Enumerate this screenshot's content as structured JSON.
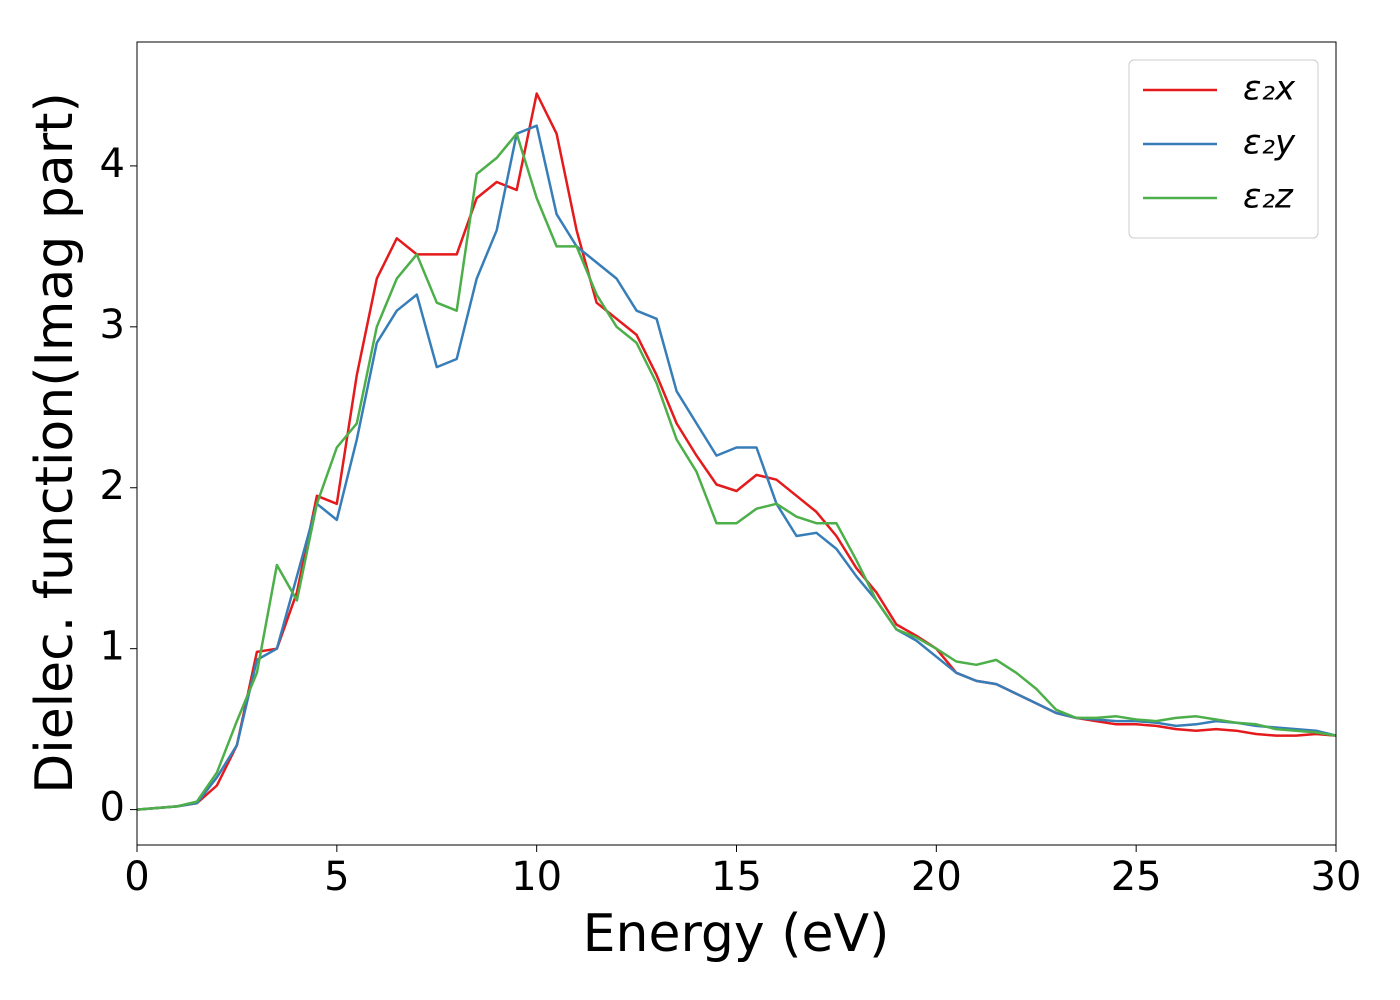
{
  "chart_data": {
    "type": "line",
    "xlabel": "Energy (eV)",
    "ylabel": "Dielec. function(Imag part)",
    "x": [
      0,
      0.5,
      1,
      1.5,
      2,
      2.5,
      3,
      3.5,
      4,
      4.5,
      5,
      5.5,
      6,
      6.5,
      7,
      7.5,
      8,
      8.5,
      9,
      9.5,
      10,
      10.5,
      11,
      11.5,
      12,
      12.5,
      13,
      13.5,
      14,
      14.5,
      15,
      15.5,
      16,
      16.5,
      17,
      17.5,
      18,
      18.5,
      19,
      19.5,
      20,
      20.5,
      21,
      21.5,
      22,
      22.5,
      23,
      23.5,
      24,
      24.5,
      25,
      25.5,
      26,
      26.5,
      27,
      27.5,
      28,
      28.5,
      29,
      29.5,
      30
    ],
    "series": [
      {
        "name": "ε₂x",
        "color": "#e41a1c",
        "values": [
          0,
          0.01,
          0.02,
          0.04,
          0.15,
          0.4,
          0.98,
          1.0,
          1.35,
          1.95,
          1.9,
          2.7,
          3.3,
          3.55,
          3.45,
          3.45,
          3.45,
          3.8,
          3.9,
          3.85,
          4.45,
          4.2,
          3.6,
          3.15,
          3.05,
          2.95,
          2.7,
          2.4,
          2.2,
          2.02,
          1.98,
          2.08,
          2.05,
          1.95,
          1.85,
          1.7,
          1.5,
          1.35,
          1.15,
          1.08,
          1.0,
          0.85,
          0.8,
          0.78,
          0.72,
          0.66,
          0.6,
          0.57,
          0.55,
          0.53,
          0.53,
          0.52,
          0.5,
          0.49,
          0.5,
          0.49,
          0.47,
          0.46,
          0.46,
          0.47,
          0.46
        ]
      },
      {
        "name": "ε₂y",
        "color": "#377eb8",
        "values": [
          0,
          0.01,
          0.02,
          0.04,
          0.2,
          0.4,
          0.93,
          1.0,
          1.45,
          1.9,
          1.8,
          2.3,
          2.9,
          3.1,
          3.2,
          2.75,
          2.8,
          3.3,
          3.6,
          4.2,
          4.25,
          3.7,
          3.5,
          3.4,
          3.3,
          3.1,
          3.05,
          2.6,
          2.4,
          2.2,
          2.25,
          2.25,
          1.9,
          1.7,
          1.72,
          1.62,
          1.45,
          1.3,
          1.12,
          1.05,
          0.95,
          0.85,
          0.8,
          0.78,
          0.72,
          0.66,
          0.6,
          0.57,
          0.56,
          0.55,
          0.55,
          0.54,
          0.52,
          0.53,
          0.55,
          0.54,
          0.52,
          0.51,
          0.5,
          0.49,
          0.46
        ]
      },
      {
        "name": "ε₂z",
        "color": "#4daf4a",
        "values": [
          0,
          0.01,
          0.02,
          0.05,
          0.23,
          0.55,
          0.85,
          1.52,
          1.3,
          1.9,
          2.25,
          2.4,
          3.0,
          3.3,
          3.45,
          3.15,
          3.1,
          3.95,
          4.05,
          4.2,
          3.8,
          3.5,
          3.5,
          3.2,
          3.0,
          2.9,
          2.65,
          2.3,
          2.1,
          1.78,
          1.78,
          1.87,
          1.9,
          1.82,
          1.78,
          1.78,
          1.55,
          1.3,
          1.12,
          1.07,
          1.0,
          0.92,
          0.9,
          0.93,
          0.85,
          0.75,
          0.62,
          0.57,
          0.57,
          0.58,
          0.56,
          0.55,
          0.57,
          0.58,
          0.56,
          0.54,
          0.53,
          0.5,
          0.49,
          0.48,
          0.46
        ]
      }
    ],
    "xlim": [
      0,
      30
    ],
    "xticks": [
      0,
      5,
      10,
      15,
      20,
      25,
      30
    ],
    "ylim": [
      -0.22,
      4.77
    ],
    "yticks": [
      0,
      1,
      2,
      3,
      4
    ],
    "grid": false,
    "legend": "upper right"
  }
}
